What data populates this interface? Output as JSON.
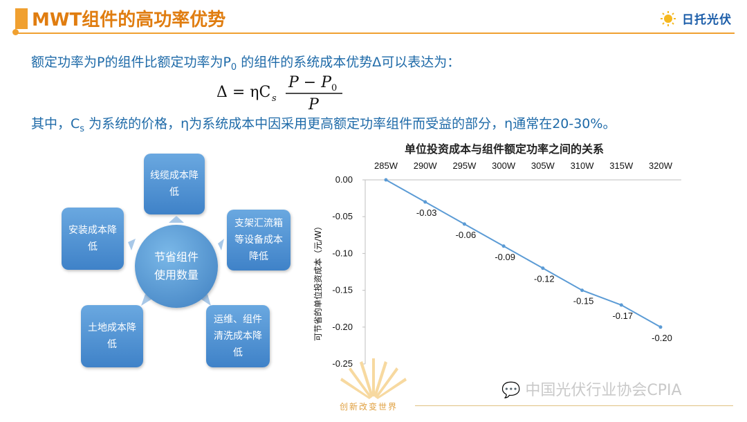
{
  "header": {
    "title": "MWT组件的高功率优势",
    "logo_text": "日托光伏"
  },
  "text": {
    "line1": "额定功率为P的组件比额定功率为P",
    "line1_sub": "0",
    "line1_rest": " 的组件的系统成本优势Δ可以表达为：",
    "line3_a": "其中，C",
    "line3_sub": "s",
    "line3_b": " 为系统的价格，η为系统成本中因采用更高额定功率组件而受益的部分，η通常在20-30%。"
  },
  "diagram": {
    "center": "节省组件\n使用数量",
    "items": [
      "线缆成本降\n低",
      "支架汇流箱\n等设备成本\n降低",
      "运维、组件\n清洗成本降\n低",
      "土地成本降\n低",
      "安装成本降\n低"
    ]
  },
  "chart_data": {
    "type": "line",
    "title": "单位投资成本与组件额定功率之间的关系",
    "ylabel": "可节省的单位投资成本（元/W）",
    "xlabel": "",
    "categories": [
      "285W",
      "290W",
      "295W",
      "300W",
      "305W",
      "310W",
      "315W",
      "320W"
    ],
    "values": [
      0.0,
      -0.03,
      -0.06,
      -0.09,
      -0.12,
      -0.15,
      -0.17,
      -0.2
    ],
    "data_labels": [
      "",
      "-0.03",
      "-0.06",
      "-0.09",
      "-0.12",
      "-0.15",
      "-0.17",
      "-0.20"
    ],
    "ylim": [
      -0.25,
      0.0
    ],
    "yticks": [
      "0.00",
      "-0.05",
      "-0.10",
      "-0.15",
      "-0.20",
      "-0.25"
    ],
    "x_axis_position": "top",
    "grid": false,
    "line_color": "#5b9bd5"
  },
  "footer": {
    "slogan": "创新改变世界",
    "watermark": "中国光伏行业协会CPIA"
  },
  "colors": {
    "accent": "#f0a030",
    "text_blue": "#1e6aa8",
    "box_blue": "#4a8cd0"
  }
}
